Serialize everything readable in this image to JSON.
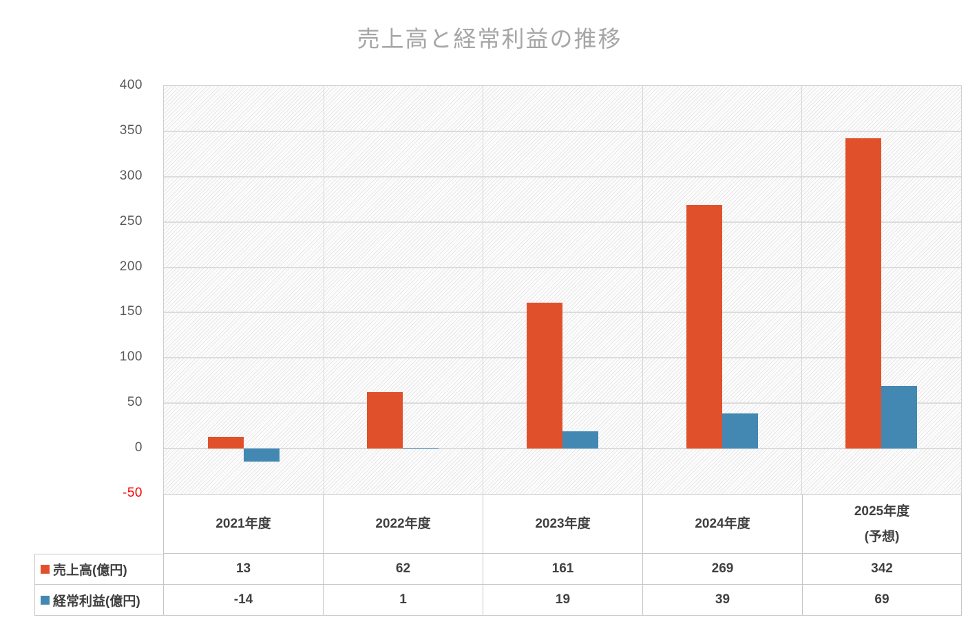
{
  "chart_data": {
    "type": "bar",
    "title": "売上高と経常利益の推移",
    "categories": [
      "2021年度",
      "2022年度",
      "2023年度",
      "2024年度",
      "2025年度\n(予想)"
    ],
    "series": [
      {
        "name": "売上高(億円)",
        "color": "#e0512b",
        "values": [
          13,
          62,
          161,
          269,
          342
        ]
      },
      {
        "name": "経常利益(億円)",
        "color": "#4288b2",
        "values": [
          -14,
          1,
          19,
          39,
          69
        ]
      }
    ],
    "ylim": [
      -50,
      400
    ],
    "yticks": [
      400,
      350,
      300,
      250,
      200,
      150,
      100,
      50,
      0,
      -50
    ],
    "grid": true,
    "legend_position": "data-table-left"
  },
  "colors": {
    "title_text": "#a6a6a6",
    "axis_tick_text": "#595959",
    "negative_tick_text": "#ff0000",
    "sales_bar": "#e0512b",
    "profit_bar": "#4288b2",
    "gridline": "#dcdcdc",
    "table_border": "#c6c6c6"
  }
}
